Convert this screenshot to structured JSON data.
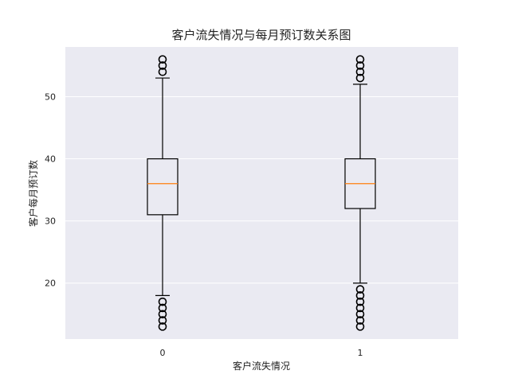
{
  "chart_data": {
    "type": "box",
    "title": "客户流失情况与每月预订数关系图",
    "xlabel": "客户流失情况",
    "ylabel": "客户每月预订数",
    "categories": [
      "0",
      "1"
    ],
    "ylim": [
      11,
      58
    ],
    "yticks": [
      20,
      30,
      40,
      50
    ],
    "grid": true,
    "series": [
      {
        "category": "0",
        "whisker_low": 18,
        "q1": 31,
        "median": 36,
        "q3": 40,
        "whisker_high": 53,
        "outliers": [
          13,
          14,
          15,
          16,
          17,
          54,
          55,
          56
        ]
      },
      {
        "category": "1",
        "whisker_low": 20,
        "q1": 32,
        "median": 36,
        "q3": 40,
        "whisker_high": 52,
        "outliers": [
          13,
          14,
          15,
          16,
          17,
          18,
          19,
          53,
          54,
          55,
          56
        ]
      }
    ],
    "colors": {
      "plot_background": "#eaeaf2",
      "grid": "#ffffff",
      "box": "#000000",
      "median": "#ff7f0e",
      "outlier": "#000000"
    }
  }
}
